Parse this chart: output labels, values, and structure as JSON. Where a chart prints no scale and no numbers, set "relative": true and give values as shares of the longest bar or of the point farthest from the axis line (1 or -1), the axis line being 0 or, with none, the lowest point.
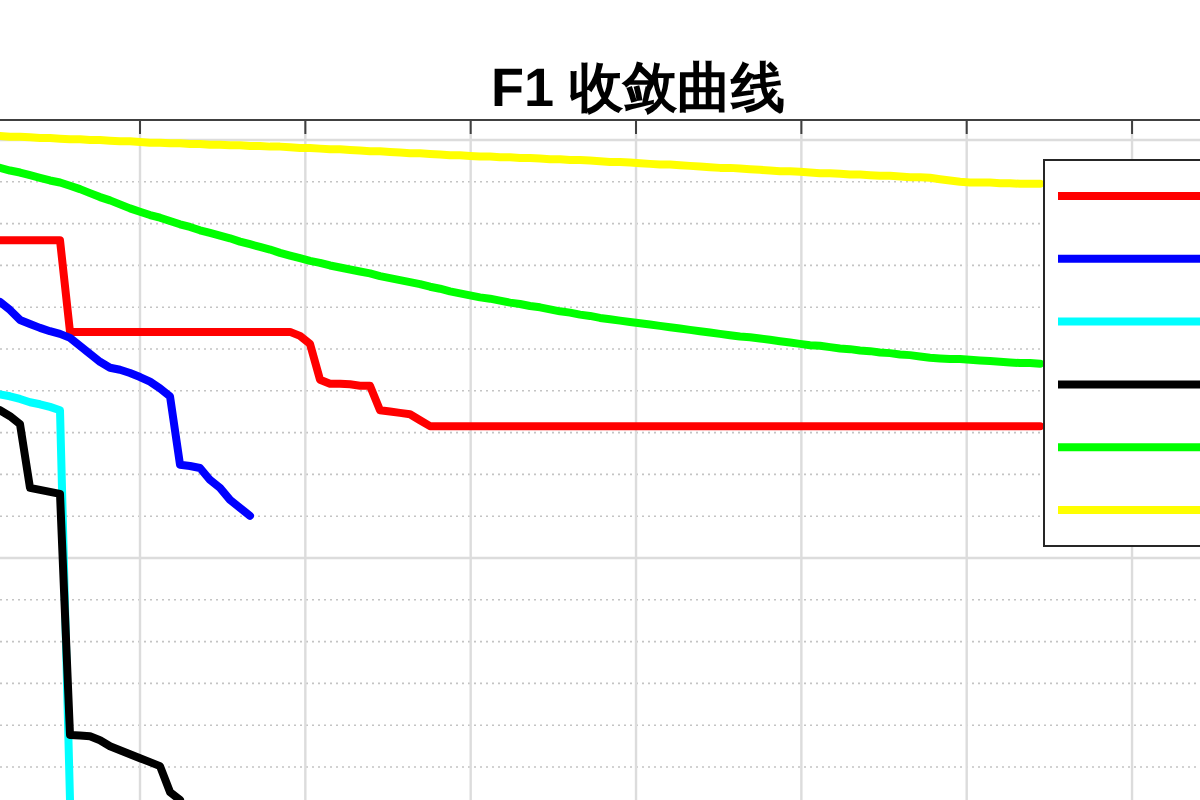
{
  "chart_data": {
    "type": "line",
    "title": "F1 收敛曲线",
    "relative": true,
    "grid": true,
    "categories": [
      null,
      null,
      null,
      null,
      null,
      null,
      null,
      null,
      null,
      null,
      null,
      null,
      null,
      null,
      null,
      null,
      null,
      null,
      null,
      null,
      null,
      null,
      null,
      null,
      null,
      null,
      null,
      null,
      null,
      null,
      null,
      null,
      null,
      null,
      null,
      null,
      null,
      null,
      null,
      null,
      null,
      null,
      null,
      null,
      null,
      null,
      null,
      null,
      null,
      null,
      null,
      null,
      null,
      null,
      null,
      null,
      null,
      null,
      null,
      null,
      null,
      null,
      null,
      null,
      null,
      null,
      null,
      null,
      null,
      null,
      null,
      null,
      null,
      null,
      null,
      null,
      null,
      null,
      null,
      null,
      null,
      null,
      null,
      null,
      null,
      null,
      null,
      null,
      null,
      null,
      null,
      null,
      null,
      null,
      null,
      null,
      null,
      null,
      null,
      null,
      null,
      null,
      null,
      null,
      null
    ],
    "series": [
      {
        "color": "#ff0000",
        "values": [
          0.843,
          0.843,
          0.843,
          0.843,
          0.843,
          0.843,
          0.843,
          0.705,
          0.705,
          0.705,
          0.705,
          0.705,
          0.705,
          0.705,
          0.705,
          0.705,
          0.705,
          0.705,
          0.705,
          0.705,
          0.705,
          0.705,
          0.705,
          0.705,
          0.705,
          0.705,
          0.705,
          0.705,
          0.705,
          0.705,
          0.699,
          0.687,
          0.633,
          0.627,
          0.627,
          0.626,
          0.624,
          0.624,
          0.587,
          0.585,
          0.583,
          0.581,
          0.572,
          0.563,
          0.563,
          0.563,
          0.563,
          0.563,
          0.563,
          0.563,
          0.563,
          0.563,
          0.563,
          0.563,
          0.563,
          0.563,
          0.563,
          0.563,
          0.563,
          0.563,
          0.563,
          0.563,
          0.563,
          0.563,
          0.563,
          0.563,
          0.563,
          0.563,
          0.563,
          0.563,
          0.563,
          0.563,
          0.563,
          0.563,
          0.563,
          0.563,
          0.563,
          0.563,
          0.563,
          0.563,
          0.563,
          0.563,
          0.563,
          0.563,
          0.563,
          0.563,
          0.563,
          0.563,
          0.563,
          0.563,
          0.563,
          0.563,
          0.563,
          0.563,
          0.563,
          0.563,
          0.563,
          0.563,
          0.563,
          0.563,
          0.563,
          0.563,
          0.563,
          0.563,
          0.563
        ]
      },
      {
        "color": "#0000ff",
        "values": [
          0.75,
          0.738,
          0.723,
          0.717,
          0.711,
          0.706,
          0.702,
          0.696,
          0.684,
          0.672,
          0.66,
          0.651,
          0.648,
          0.643,
          0.637,
          0.63,
          0.62,
          0.608,
          0.505,
          0.503,
          0.5,
          0.482,
          0.47,
          0.452,
          0.44,
          0.428,
          null,
          null,
          null,
          null,
          null,
          null,
          null,
          null,
          null,
          null,
          null,
          null,
          null,
          null,
          null,
          null,
          null,
          null,
          null,
          null,
          null,
          null,
          null,
          null,
          null,
          null,
          null,
          null,
          null,
          null,
          null,
          null,
          null,
          null,
          null,
          null,
          null,
          null,
          null,
          null,
          null,
          null,
          null,
          null,
          null,
          null,
          null,
          null,
          null,
          null,
          null,
          null,
          null,
          null,
          null,
          null,
          null,
          null,
          null,
          null,
          null,
          null,
          null,
          null,
          null,
          null,
          null,
          null,
          null,
          null,
          null,
          null,
          null,
          null,
          null,
          null,
          null,
          null,
          null
        ]
      },
      {
        "color": "#00ffff",
        "values": [
          0.611,
          0.608,
          0.604,
          0.599,
          0.596,
          0.592,
          0.587,
          0.0,
          null,
          null,
          null,
          null,
          null,
          null,
          null,
          null,
          null,
          null,
          null,
          null,
          null,
          null,
          null,
          null,
          null,
          null,
          null,
          null,
          null,
          null,
          null,
          null,
          null,
          null,
          null,
          null,
          null,
          null,
          null,
          null,
          null,
          null,
          null,
          null,
          null,
          null,
          null,
          null,
          null,
          null,
          null,
          null,
          null,
          null,
          null,
          null,
          null,
          null,
          null,
          null,
          null,
          null,
          null,
          null,
          null,
          null,
          null,
          null,
          null,
          null,
          null,
          null,
          null,
          null,
          null,
          null,
          null,
          null,
          null,
          null,
          null,
          null,
          null,
          null,
          null,
          null,
          null,
          null,
          null,
          null,
          null,
          null,
          null,
          null,
          null,
          null,
          null,
          null,
          null,
          null,
          null,
          null,
          null,
          null,
          null
        ]
      },
      {
        "color": "#000000",
        "values": [
          0.587,
          0.578,
          0.566,
          0.47,
          0.467,
          0.464,
          0.461,
          0.098,
          0.097,
          0.096,
          0.09,
          0.081,
          0.075,
          0.069,
          0.063,
          0.057,
          0.051,
          0.012,
          0.0,
          null,
          null,
          null,
          null,
          null,
          null,
          null,
          null,
          null,
          null,
          null,
          null,
          null,
          null,
          null,
          null,
          null,
          null,
          null,
          null,
          null,
          null,
          null,
          null,
          null,
          null,
          null,
          null,
          null,
          null,
          null,
          null,
          null,
          null,
          null,
          null,
          null,
          null,
          null,
          null,
          null,
          null,
          null,
          null,
          null,
          null,
          null,
          null,
          null,
          null,
          null,
          null,
          null,
          null,
          null,
          null,
          null,
          null,
          null,
          null,
          null,
          null,
          null,
          null,
          null,
          null,
          null,
          null,
          null,
          null,
          null,
          null,
          null,
          null,
          null,
          null,
          null,
          null,
          null,
          null,
          null,
          null,
          null,
          null,
          null,
          null
        ]
      },
      {
        "color": "#00ff00",
        "values": [
          0.952,
          0.948,
          0.945,
          0.941,
          0.937,
          0.933,
          0.93,
          0.925,
          0.92,
          0.914,
          0.908,
          0.903,
          0.897,
          0.891,
          0.886,
          0.881,
          0.877,
          0.872,
          0.867,
          0.863,
          0.858,
          0.854,
          0.85,
          0.846,
          0.841,
          0.837,
          0.833,
          0.829,
          0.824,
          0.82,
          0.816,
          0.812,
          0.809,
          0.805,
          0.802,
          0.799,
          0.796,
          0.793,
          0.789,
          0.786,
          0.783,
          0.78,
          0.777,
          0.773,
          0.77,
          0.766,
          0.763,
          0.76,
          0.757,
          0.755,
          0.752,
          0.749,
          0.747,
          0.744,
          0.742,
          0.739,
          0.736,
          0.734,
          0.731,
          0.729,
          0.726,
          0.724,
          0.722,
          0.72,
          0.718,
          0.716,
          0.714,
          0.712,
          0.71,
          0.708,
          0.706,
          0.704,
          0.702,
          0.7,
          0.698,
          0.697,
          0.695,
          0.693,
          0.691,
          0.689,
          0.687,
          0.685,
          0.684,
          0.682,
          0.68,
          0.679,
          0.677,
          0.676,
          0.674,
          0.673,
          0.671,
          0.67,
          0.668,
          0.666,
          0.665,
          0.664,
          0.664,
          0.663,
          0.662,
          0.661,
          0.66,
          0.659,
          0.658,
          0.658,
          0.657
        ]
      },
      {
        "color": "#ffff00",
        "values": [
          1.0,
          0.999,
          0.999,
          0.998,
          0.997,
          0.997,
          0.996,
          0.995,
          0.995,
          0.994,
          0.994,
          0.993,
          0.992,
          0.992,
          0.991,
          0.99,
          0.99,
          0.989,
          0.989,
          0.988,
          0.988,
          0.987,
          0.987,
          0.986,
          0.986,
          0.985,
          0.985,
          0.984,
          0.984,
          0.983,
          0.982,
          0.982,
          0.981,
          0.98,
          0.98,
          0.979,
          0.978,
          0.977,
          0.977,
          0.976,
          0.975,
          0.974,
          0.974,
          0.973,
          0.972,
          0.971,
          0.971,
          0.97,
          0.969,
          0.969,
          0.968,
          0.968,
          0.967,
          0.967,
          0.966,
          0.965,
          0.965,
          0.964,
          0.964,
          0.963,
          0.962,
          0.961,
          0.961,
          0.96,
          0.959,
          0.958,
          0.957,
          0.957,
          0.956,
          0.955,
          0.954,
          0.953,
          0.952,
          0.952,
          0.951,
          0.95,
          0.949,
          0.948,
          0.947,
          0.947,
          0.946,
          0.945,
          0.944,
          0.944,
          0.943,
          0.942,
          0.942,
          0.941,
          0.94,
          0.94,
          0.939,
          0.938,
          0.938,
          0.937,
          0.935,
          0.933,
          0.931,
          0.93,
          0.93,
          0.93,
          0.929,
          0.929,
          0.928,
          0.928,
          0.928
        ]
      }
    ]
  }
}
